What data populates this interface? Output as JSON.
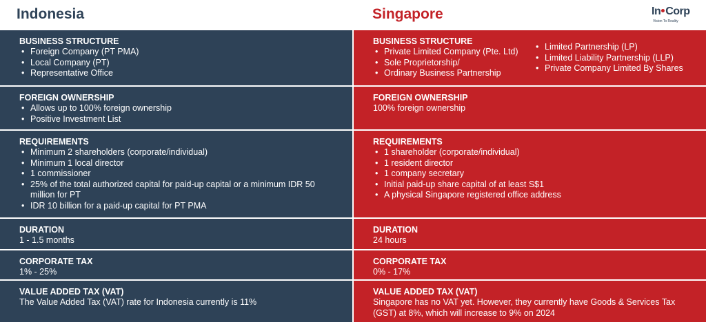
{
  "indonesia": {
    "title": "Indonesia",
    "business_structure": {
      "heading": "BUSINESS STRUCTURE",
      "items": [
        "Foreign Company (PT PMA)",
        "Local Company (PT)",
        "Representative Office"
      ]
    },
    "foreign_ownership": {
      "heading": "FOREIGN OWNERSHIP",
      "items": [
        "Allows up to 100% foreign ownership",
        "Positive Investment List"
      ]
    },
    "requirements": {
      "heading": "REQUIREMENTS",
      "items": [
        "Minimum 2 shareholders (corporate/individual)",
        "Minimum 1 local director",
        "1 commissioner",
        "25% of the total authorized capital for paid-up capital or a minimum IDR 50 million for PT",
        "IDR 10 billion for a paid-up capital for PT PMA"
      ]
    },
    "duration": {
      "heading": "DURATION",
      "value": "1 - 1.5 months"
    },
    "corporate_tax": {
      "heading": "CORPORATE TAX",
      "value": "1% - 25%"
    },
    "vat": {
      "heading": "VALUE ADDED TAX (VAT)",
      "value": "The Value Added Tax (VAT) rate for Indonesia currently is 11%"
    }
  },
  "singapore": {
    "title": "Singapore",
    "business_structure": {
      "heading": "BUSINESS STRUCTURE",
      "items_a": [
        "Private Limited Company (Pte. Ltd)",
        "Sole Proprietorship/",
        "Ordinary Business Partnership"
      ],
      "items_b": [
        "Limited Partnership (LP)",
        "Limited Liability Partnership (LLP)",
        "Private Company Limited By Shares"
      ]
    },
    "foreign_ownership": {
      "heading": "FOREIGN OWNERSHIP",
      "value": "100% foreign ownership"
    },
    "requirements": {
      "heading": "REQUIREMENTS",
      "items": [
        "1 shareholder (corporate/individual)",
        "1 resident director",
        "1 company secretary",
        "Initial paid-up share capital of at least S$1",
        "A physical Singapore registered office address"
      ]
    },
    "duration": {
      "heading": "DURATION",
      "value": "24 hours"
    },
    "corporate_tax": {
      "heading": "CORPORATE TAX",
      "value": "0% - 17%"
    },
    "vat": {
      "heading": "VALUE ADDED TAX (VAT)",
      "value": "Singapore has no VAT yet. However, they currently have Goods & Services Tax (GST) at 8%, which will increase to 9% on 2024"
    }
  },
  "logo": {
    "name_part1": "In",
    "name_part2": "Corp",
    "tagline": "Vision To Reality"
  },
  "colors": {
    "indonesia": "#2e4257",
    "singapore": "#c32227"
  }
}
